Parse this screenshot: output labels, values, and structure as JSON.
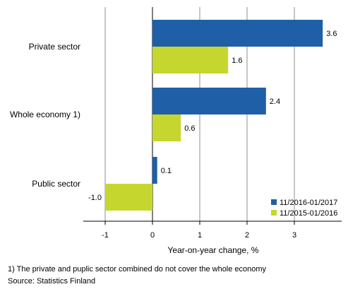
{
  "chart_data": {
    "type": "bar",
    "orientation": "horizontal",
    "categories": [
      "Private sector",
      "Whole economy 1)",
      "Public sector"
    ],
    "series": [
      {
        "name": "11/2016-01/2017",
        "color": "#1f5fa8",
        "values": [
          3.6,
          2.4,
          0.1
        ],
        "labels": [
          "3.6",
          "2.4",
          "0.1"
        ]
      },
      {
        "name": "11/2015-01/2016",
        "color": "#c5d72f",
        "values": [
          1.6,
          0.6,
          -1.0
        ],
        "labels": [
          "1.6",
          "0.6",
          "-1.0"
        ]
      }
    ],
    "xlabel": "Year-on-year change, %",
    "ylabel": "",
    "xlim": [
      -1.5,
      4.0
    ],
    "xticks": [
      -1,
      0,
      1,
      2,
      3
    ],
    "xtick_labels": [
      "-1",
      "0",
      "1",
      "2",
      "3"
    ],
    "grid": true,
    "legend_position": "bottom-right"
  },
  "footnotes": {
    "note1": "1) The private and puplic sector combined do not cover the whole economy",
    "source": "Source: Statistics Finland"
  }
}
